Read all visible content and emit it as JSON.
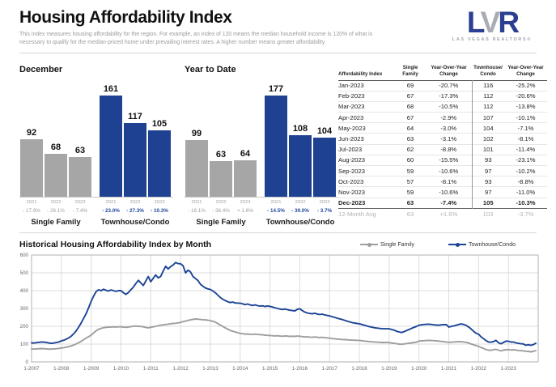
{
  "header": {
    "title": "Housing Affordability Index",
    "subtitle_line1": "This index measures housing affordability for the region. For example, an index of 120 means the median household income is 120% of what is",
    "subtitle_line2": "necessary to qualify for the median-priced home under prevailing interest rates. A higher number means greater affordability.",
    "logo": {
      "l": "L",
      "v": "V",
      "r": "R",
      "tagline": "LAS VEGAS REALTORS®"
    }
  },
  "colors": {
    "bar_blue": "#1e4191",
    "bar_gray": "#a6a6a6",
    "line_blue": "#1c4496",
    "line_gray": "#9e9e9e",
    "pct_blue": "#2047a0",
    "muted_text": "#9b9b9b",
    "grid": "#dcdcdc",
    "plot_border": "#b0b0b0"
  },
  "table": {
    "headers": [
      "Affordability Index",
      "Single\nFamily",
      "Year-Over-Year\nChange",
      "Townhouse/\nCondo",
      "Year-Over-Year\nChange"
    ],
    "rows": [
      [
        "Jan-2023",
        "69",
        "-20.7%",
        "116",
        "-25.2%"
      ],
      [
        "Feb-2023",
        "67",
        "-17.3%",
        "112",
        "-20.6%"
      ],
      [
        "Mar-2023",
        "68",
        "-10.5%",
        "112",
        "-13.8%"
      ],
      [
        "Apr-2023",
        "67",
        "-2.9%",
        "107",
        "-10.1%"
      ],
      [
        "May-2023",
        "64",
        "-3.0%",
        "104",
        "-7.1%"
      ],
      [
        "Jun-2023",
        "63",
        "-3.1%",
        "102",
        "-8.1%"
      ],
      [
        "Jul-2023",
        "62",
        "-8.8%",
        "101",
        "-11.4%"
      ],
      [
        "Aug-2023",
        "60",
        "-15.5%",
        "93",
        "-23.1%"
      ],
      [
        "Sep-2023",
        "59",
        "-10.6%",
        "97",
        "-10.2%"
      ],
      [
        "Oct-2023",
        "57",
        "-8.1%",
        "93",
        "-8.8%"
      ],
      [
        "Nov-2023",
        "59",
        "-10.6%",
        "97",
        "-11.0%"
      ],
      [
        "Dec-2023",
        "63",
        "-7.4%",
        "105",
        "-10.3%"
      ]
    ],
    "footer": [
      "12-Month Avg",
      "63",
      "+1.6%",
      "103",
      "-3.7%"
    ]
  },
  "chart_data": [
    {
      "type": "bar",
      "title": "December",
      "categories": [
        "2021",
        "2022",
        "2023"
      ],
      "series": [
        {
          "name": "Single Family",
          "color_key": "bar_gray",
          "values": [
            92,
            68,
            63
          ],
          "changes": [
            "- 17.9%",
            "- 26.1%",
            "- 7.4%"
          ]
        },
        {
          "name": "Townhouse/Condo",
          "color_key": "bar_blue",
          "values": [
            161,
            117,
            105
          ],
          "changes": [
            "- 23.0%",
            "- 27.3%",
            "- 10.3%"
          ]
        }
      ]
    },
    {
      "type": "bar",
      "title": "Year to Date",
      "categories": [
        "2021",
        "2022",
        "2023"
      ],
      "series": [
        {
          "name": "Single Family",
          "color_key": "bar_gray",
          "values": [
            99,
            63,
            64
          ],
          "changes": [
            "- 16.1%",
            "- 36.4%",
            "+ 1.6%"
          ]
        },
        {
          "name": "Townhouse/Condo",
          "color_key": "bar_blue",
          "values": [
            177,
            108,
            104
          ],
          "changes": [
            "- 14.5%",
            "- 39.0%",
            "- 3.7%"
          ]
        }
      ]
    },
    {
      "type": "line",
      "title": "Historical Housing Affordability Index by Month",
      "x_tick_labels": [
        "1-2007",
        "1-2008",
        "1-2009",
        "1-2010",
        "1-2011",
        "1-2012",
        "1-2013",
        "1-2014",
        "1-2015",
        "1-2016",
        "1-2017",
        "1-2018",
        "1-2019",
        "1-2020",
        "1-2021",
        "1-2022",
        "1-2023"
      ],
      "months_per_tick": 12,
      "ylim": [
        0,
        600
      ],
      "yticks": [
        0,
        100,
        200,
        300,
        400,
        500,
        600
      ],
      "grid": true,
      "legend_position": "top-right",
      "series": [
        {
          "name": "Single Family",
          "color_key": "line_gray",
          "monthly_values": [
            73,
            72,
            73,
            74,
            75,
            74,
            73,
            72,
            72,
            73,
            74,
            76,
            78,
            80,
            83,
            86,
            90,
            95,
            101,
            108,
            116,
            125,
            134,
            142,
            150,
            163,
            175,
            183,
            188,
            192,
            194,
            195,
            196,
            197,
            196,
            197,
            197,
            195,
            194,
            196,
            198,
            200,
            201,
            200,
            199,
            197,
            193,
            191,
            194,
            197,
            200,
            203,
            206,
            208,
            210,
            212,
            214,
            216,
            217,
            219,
            222,
            226,
            229,
            233,
            236,
            239,
            241,
            240,
            238,
            237,
            236,
            234,
            232,
            228,
            223,
            215,
            207,
            199,
            191,
            184,
            177,
            172,
            168,
            164,
            160,
            158,
            156,
            157,
            155,
            154,
            156,
            154,
            153,
            152,
            150,
            149,
            148,
            147,
            146,
            147,
            145,
            144,
            146,
            145,
            143,
            144,
            143,
            145,
            144,
            142,
            140,
            141,
            139,
            138,
            140,
            138,
            137,
            138,
            136,
            135,
            133,
            131,
            130,
            128,
            127,
            126,
            125,
            124,
            123,
            122,
            122,
            121,
            121,
            119,
            117,
            116,
            114,
            113,
            112,
            111,
            110,
            109,
            109,
            110,
            108,
            106,
            104,
            102,
            100,
            99,
            101,
            103,
            105,
            107,
            109,
            111,
            117,
            118,
            119,
            120,
            121,
            120,
            119,
            118,
            117,
            115,
            113,
            112,
            110,
            111,
            112,
            113,
            114,
            113,
            112,
            110,
            106,
            101,
            96,
            92,
            87,
            81,
            76,
            69,
            66,
            65,
            68,
            71,
            66,
            62,
            66,
            68,
            69,
            67,
            68,
            67,
            64,
            63,
            62,
            60,
            59,
            57,
            59,
            63
          ]
        },
        {
          "name": "Townhouse/Condo",
          "color_key": "line_blue",
          "monthly_values": [
            107,
            106,
            108,
            110,
            112,
            111,
            109,
            106,
            104,
            106,
            109,
            112,
            118,
            122,
            128,
            135,
            145,
            158,
            175,
            196,
            220,
            245,
            272,
            305,
            340,
            370,
            395,
            405,
            400,
            408,
            402,
            398,
            404,
            400,
            396,
            400,
            400,
            388,
            379,
            390,
            405,
            420,
            440,
            458,
            443,
            429,
            455,
            479,
            450,
            470,
            488,
            472,
            480,
            510,
            537,
            522,
            535,
            544,
            558,
            552,
            551,
            540,
            500,
            515,
            505,
            479,
            468,
            457,
            436,
            425,
            415,
            410,
            407,
            398,
            388,
            375,
            362,
            352,
            344,
            338,
            333,
            336,
            331,
            330,
            330,
            326,
            322,
            325,
            320,
            317,
            320,
            316,
            313,
            315,
            311,
            314,
            312,
            308,
            304,
            300,
            297,
            294,
            297,
            293,
            290,
            288,
            286,
            295,
            298,
            288,
            280,
            275,
            272,
            270,
            273,
            269,
            266,
            268,
            264,
            261,
            258,
            254,
            250,
            246,
            242,
            238,
            234,
            229,
            225,
            221,
            218,
            216,
            214,
            210,
            206,
            202,
            198,
            195,
            192,
            190,
            188,
            187,
            186,
            186,
            186,
            182,
            178,
            172,
            168,
            165,
            170,
            176,
            182,
            188,
            194,
            199,
            206,
            208,
            210,
            211,
            212,
            210,
            208,
            207,
            206,
            208,
            209,
            209,
            196,
            199,
            202,
            206,
            210,
            213,
            210,
            205,
            196,
            185,
            172,
            161,
            155,
            141,
            130,
            119,
            112,
            111,
            114,
            121,
            108,
            102,
            109,
            117,
            116,
            112,
            112,
            107,
            104,
            102,
            101,
            93,
            97,
            93,
            97,
            105
          ]
        }
      ]
    }
  ]
}
